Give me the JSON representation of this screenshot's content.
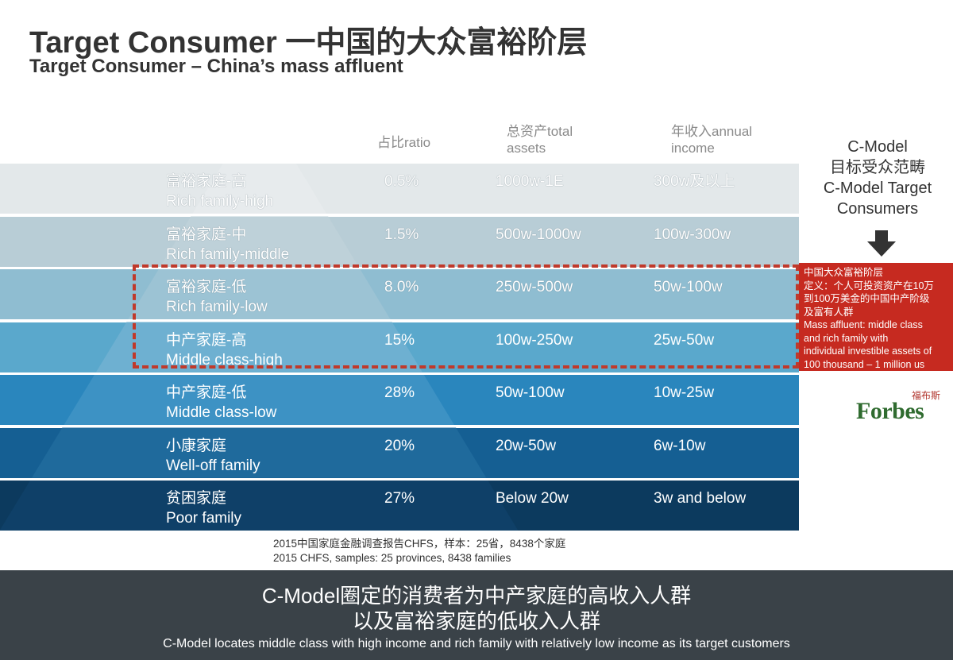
{
  "title": "Target Consumer 一中国的大众富裕阶层",
  "subtitle": "Target Consumer – China’s mass affluent",
  "headers": {
    "ratio": "占比ratio",
    "assets_cn": "总资产total",
    "assets_en": "assets",
    "income_cn": "年收入annual",
    "income_en": "income"
  },
  "rows": [
    {
      "label_cn": "富裕家庭-高",
      "label_en": "Rich family-high",
      "ratio": "0.5%",
      "assets": "1000w-1E",
      "income": "300w及以上"
    },
    {
      "label_cn": "富裕家庭-中",
      "label_en": "Rich family-middle",
      "ratio": "1.5%",
      "assets": "500w-1000w",
      "income": "100w-300w"
    },
    {
      "label_cn": "富裕家庭-低",
      "label_en": "Rich family-low",
      "ratio": "8.0%",
      "assets": "250w-500w",
      "income": "50w-100w"
    },
    {
      "label_cn": "中产家庭-高",
      "label_en": "Middle class-high",
      "ratio": "15%",
      "assets": "100w-250w",
      "income": "25w-50w"
    },
    {
      "label_cn": "中产家庭-低",
      "label_en": "Middle class-low",
      "ratio": "28%",
      "assets": "50w-100w",
      "income": "10w-25w"
    },
    {
      "label_cn": "小康家庭",
      "label_en": "Well-off family",
      "ratio": "20%",
      "assets": "20w-50w",
      "income": "6w-10w"
    },
    {
      "label_cn": "贫困家庭",
      "label_en": "Poor family",
      "ratio": "27%",
      "assets": "Below 20w",
      "income": "3w and below"
    }
  ],
  "colors": {
    "rows": [
      "#e3e8ea",
      "#b8cdd6",
      "#8fbdd1",
      "#5aa8cc",
      "#2a86bd",
      "#155f93",
      "#0c3a5e"
    ],
    "pyramid": [
      "#e7ebed",
      "#bed1d9",
      "#9cc3d4",
      "#6eb0d1",
      "#3d92c4",
      "#1f6a9c",
      "#0f4068"
    ],
    "accent": "#c62a20",
    "banner": "#3a4248"
  },
  "cmodel": {
    "line1": "C-Model",
    "line2": "目标受众范畴",
    "line3": "C-Model Target",
    "line4": "Consumers"
  },
  "definition": {
    "line1": "中国大众富裕阶层",
    "line2": "定义：个人可投资资产在10万",
    "line3": "到100万美金的中国中产阶级",
    "line4": "及富有人群",
    "line5": "Mass affluent: middle class",
    "line6": "and rich family with",
    "line7": "individual investible assets of",
    "line8": "100 thousand – 1 million us"
  },
  "logo": {
    "word": "Forbes",
    "cn": "福布斯"
  },
  "source": {
    "cn": "2015中国家庭金融调查报告CHFS，样本：25省，8438个家庭",
    "en": "2015 CHFS, samples: 25 provinces, 8438 families"
  },
  "banner": {
    "line1": "C-Model圈定的消费者为中产家庭的高收入人群",
    "line2": "以及富裕家庭的低收入人群",
    "line3": "C-Model locates middle class with high income and rich family with relatively low income as its target customers"
  }
}
